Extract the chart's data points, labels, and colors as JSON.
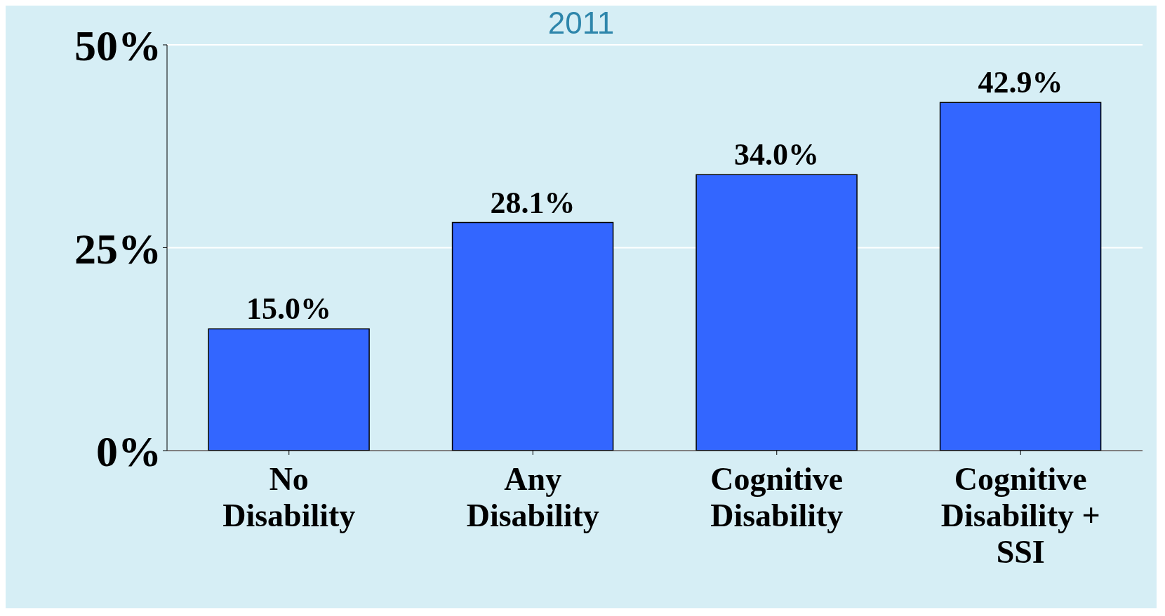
{
  "chart_data": {
    "type": "bar",
    "title": "2011",
    "categories": [
      "No Disability",
      "Any Disability",
      "Cognitive Disability",
      "Cognitive Disability + SSI"
    ],
    "values": [
      15.0,
      28.1,
      34.0,
      42.9
    ],
    "value_labels": [
      "15.0%",
      "28.1%",
      "34.0%",
      "42.9%"
    ],
    "color": "#3366ff",
    "ylim": [
      0,
      50
    ],
    "yticks": [
      {
        "value": 0,
        "label": "0%"
      },
      {
        "value": 25,
        "label": "25%"
      },
      {
        "value": 50,
        "label": "50%"
      }
    ],
    "grid": "y"
  }
}
